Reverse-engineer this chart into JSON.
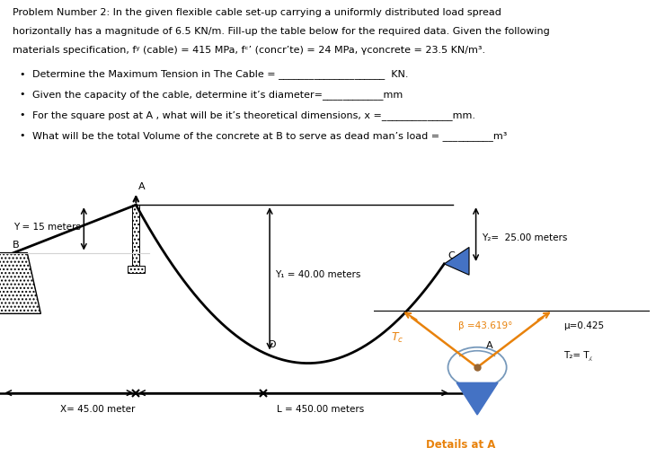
{
  "line1": "Problem Number 2: In the given flexible cable set-up carrying a uniformly distributed load spread",
  "line2": "horizontally has a magnitude of 6.5 KN/m. Fill-up the table below for the required data. Given the following",
  "line3": "materials specification, fʸ (cable) = 415 MPa, fᶜ’ (concr’te) = 24 MPa, γconcrete = 23.5 KN/m³.",
  "bullet1": "Determine the Maximum Tension in The Cable = _____________________  KN.",
  "bullet2": "Given the capacity of the cable, determine it’s diameter=____________mm",
  "bullet3": "For the square post at A , what will be it’s theoretical dimensions, x =______________mm.",
  "bullet4": "What will be the total Volume of the concrete at B to serve as dead man’s load = __________m³",
  "Y_label": "Y = 15 meters",
  "Y1_label": "Y₁ = 40.00 meters",
  "Y2_label": "Y₂=  25.00 meters",
  "HA_label": "μ=0.425",
  "T2_label": "T₂= T⁁",
  "B_angle_label": "β =43.619°",
  "X_label": "X= 45.00 meter",
  "L_label": "L = 450.00 meters",
  "details_label": "Details at A",
  "bg_color": "#ffffff",
  "line_color": "#000000",
  "orange_color": "#E8820C",
  "blue_color": "#4472C4",
  "label_A": "A",
  "label_B": "B",
  "label_C": "C",
  "label_D": "D"
}
